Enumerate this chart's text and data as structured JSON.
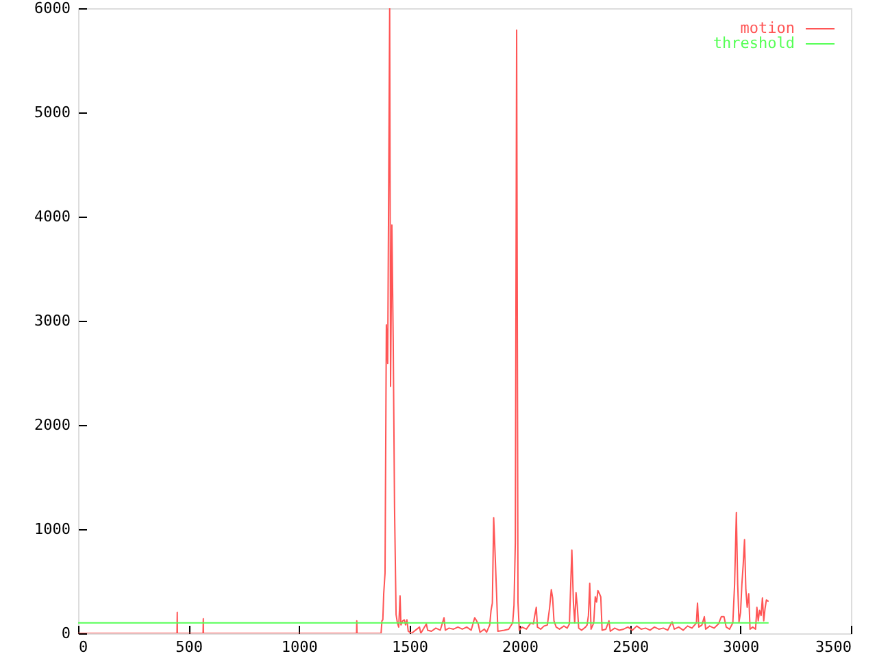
{
  "chart_data": {
    "type": "line",
    "series": [
      {
        "name": "motion",
        "color": "#ff5555",
        "x": [
          0,
          448,
          449,
          450,
          566,
          567,
          568,
          1261,
          1262,
          1263,
          1372,
          1376,
          1380,
          1384,
          1390,
          1396,
          1402,
          1411,
          1415,
          1421,
          1427,
          1433,
          1440,
          1446,
          1452,
          1458,
          1462,
          1470,
          1477,
          1483,
          1489,
          1495,
          1510,
          1546,
          1552,
          1577,
          1583,
          1600,
          1620,
          1640,
          1657,
          1663,
          1680,
          1700,
          1720,
          1740,
          1760,
          1780,
          1796,
          1802,
          1812,
          1820,
          1840,
          1850,
          1864,
          1870,
          1876,
          1882,
          1889,
          1895,
          1901,
          1930,
          1950,
          1968,
          1974,
          1980,
          1986,
          1992,
          1998,
          2010,
          2030,
          2050,
          2062,
          2067,
          2075,
          2080,
          2095,
          2110,
          2125,
          2135,
          2143,
          2149,
          2155,
          2165,
          2180,
          2200,
          2215,
          2225,
          2236,
          2243,
          2249,
          2255,
          2261,
          2267,
          2280,
          2298,
          2305,
          2311,
          2317,
          2323,
          2335,
          2342,
          2348,
          2354,
          2361,
          2367,
          2373,
          2390,
          2404,
          2410,
          2430,
          2450,
          2470,
          2490,
          2510,
          2530,
          2550,
          2570,
          2590,
          2610,
          2630,
          2650,
          2670,
          2690,
          2700,
          2720,
          2740,
          2760,
          2780,
          2800,
          2805,
          2811,
          2825,
          2836,
          2842,
          2860,
          2880,
          2900,
          2913,
          2925,
          2935,
          2950,
          2965,
          2973,
          2981,
          2987,
          2993,
          3000,
          3006,
          3012,
          3018,
          3024,
          3030,
          3037,
          3043,
          3055,
          3068,
          3074,
          3080,
          3086,
          3093,
          3099,
          3105,
          3111,
          3117,
          3124,
          3127
        ],
        "values": [
          0,
          0,
          200,
          0,
          0,
          140,
          0,
          0,
          120,
          0,
          0,
          120,
          130,
          380,
          580,
          2960,
          2590,
          6000,
          2370,
          3920,
          2810,
          1210,
          180,
          100,
          60,
          360,
          80,
          120,
          130,
          80,
          130,
          20,
          0,
          60,
          0,
          90,
          30,
          20,
          50,
          30,
          150,
          30,
          50,
          40,
          60,
          40,
          60,
          30,
          150,
          130,
          90,
          10,
          40,
          10,
          80,
          220,
          290,
          1110,
          730,
          390,
          20,
          30,
          40,
          100,
          270,
          870,
          5790,
          300,
          30,
          60,
          40,
          100,
          90,
          160,
          250,
          60,
          40,
          70,
          80,
          240,
          420,
          340,
          120,
          60,
          40,
          70,
          50,
          90,
          800,
          300,
          100,
          390,
          250,
          50,
          30,
          60,
          80,
          170,
          480,
          40,
          100,
          350,
          300,
          410,
          380,
          350,
          30,
          40,
          120,
          20,
          50,
          30,
          40,
          60,
          30,
          70,
          40,
          50,
          30,
          60,
          40,
          50,
          30,
          110,
          40,
          60,
          30,
          70,
          50,
          100,
          290,
          60,
          80,
          160,
          40,
          70,
          50,
          90,
          160,
          160,
          60,
          40,
          100,
          470,
          1160,
          470,
          110,
          200,
          470,
          660,
          900,
          420,
          250,
          380,
          40,
          60,
          40,
          250,
          120,
          220,
          170,
          340,
          120,
          240,
          320,
          310,
          310
        ]
      },
      {
        "name": "threshold",
        "color": "#55ff55",
        "x": [
          0,
          3127
        ],
        "values": [
          100,
          100
        ]
      }
    ],
    "xlim": [
      0,
      3500
    ],
    "ylim": [
      0,
      6000
    ],
    "xticks": [
      0,
      500,
      1000,
      1500,
      2000,
      2500,
      3000,
      3500
    ],
    "yticks": [
      0,
      1000,
      2000,
      3000,
      4000,
      5000,
      6000
    ],
    "legend": "top right"
  }
}
